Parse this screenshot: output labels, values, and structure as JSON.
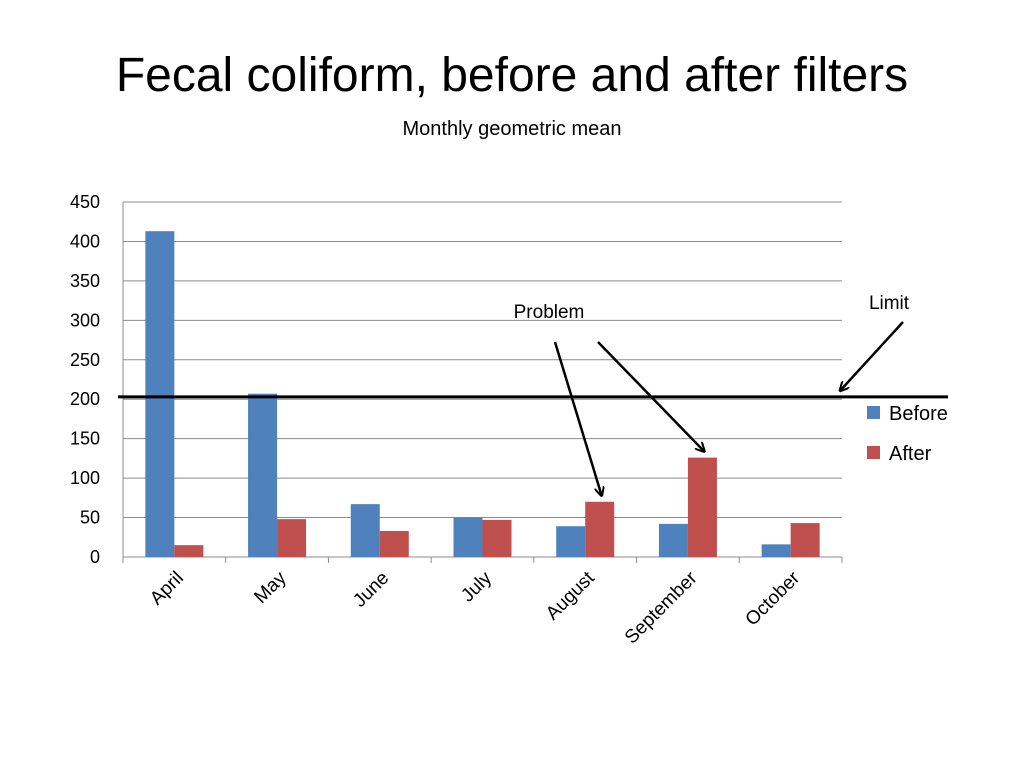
{
  "slide": {
    "title": "Fecal coliform, before and after filters",
    "subtitle": "Monthly geometric mean"
  },
  "chart_data": {
    "type": "bar",
    "title": "Fecal coliform, before and after filters",
    "subtitle": "Monthly geometric mean",
    "xlabel": "",
    "ylabel": "",
    "ylim": [
      0,
      450
    ],
    "y_ticks": [
      0,
      50,
      100,
      150,
      200,
      250,
      300,
      350,
      400,
      450
    ],
    "grid": true,
    "legend_position": "right",
    "categories": [
      "April",
      "May",
      "June",
      "July",
      "August",
      "September",
      "October"
    ],
    "series": [
      {
        "name": "Before",
        "color": "#4F81BD",
        "values": [
          413,
          207,
          67,
          50,
          39,
          42,
          16
        ]
      },
      {
        "name": "After",
        "color": "#C0504D",
        "values": [
          15,
          48,
          33,
          47,
          70,
          126,
          43
        ]
      }
    ],
    "reference_line": {
      "value": 203,
      "color": "#000000"
    },
    "annotations": [
      {
        "label": "Problem",
        "targets": [
          "August",
          "September"
        ]
      },
      {
        "label": "Limit",
        "target": "reference_line"
      }
    ]
  }
}
